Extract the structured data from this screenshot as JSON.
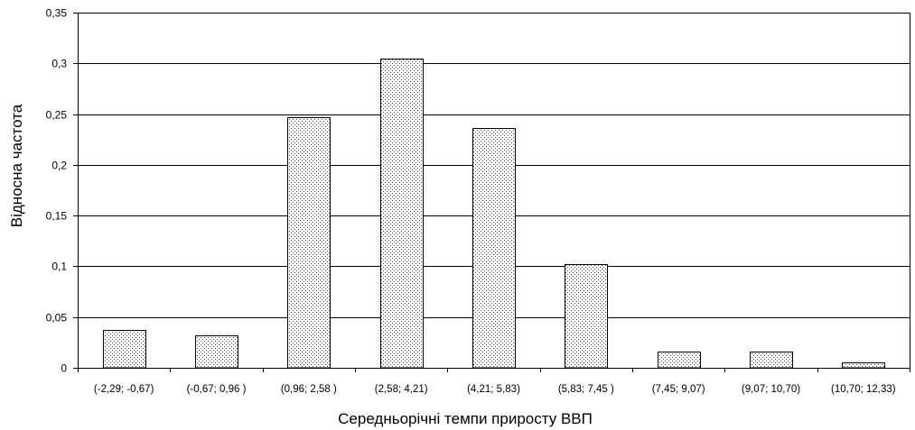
{
  "chart_data": {
    "type": "bar",
    "title": "",
    "xlabel": "Середньорічні темпи приросту ВВП",
    "ylabel": "Відносна частота",
    "categories": [
      "(-2,29; -0,67)",
      "(-0,67; 0,96 )",
      "(0,96; 2,58 )",
      "(2,58; 4,21)",
      "(4,21; 5,83)",
      "(5,83; 7,45 )",
      "(7,45; 9,07)",
      "(9,07; 10,70)",
      "(10,70; 12,33)"
    ],
    "values": [
      0.037,
      0.032,
      0.247,
      0.305,
      0.236,
      0.102,
      0.016,
      0.016,
      0.005
    ],
    "ylim": [
      0,
      0.35
    ],
    "yticks": [
      0,
      0.05,
      0.1,
      0.15,
      0.2,
      0.25,
      0.3,
      0.35
    ],
    "ytick_labels": [
      "0",
      "0,05",
      "0,1",
      "0,15",
      "0,2",
      "0,25",
      "0,3",
      "0,35"
    ],
    "grid": true,
    "legend": "none",
    "bar_fill": "dotted",
    "colors": {
      "bar_fill": "#ffffff",
      "bar_dots": "#000000",
      "bar_edge": "#000000",
      "grid": "#000000",
      "axis": "#000000"
    }
  }
}
